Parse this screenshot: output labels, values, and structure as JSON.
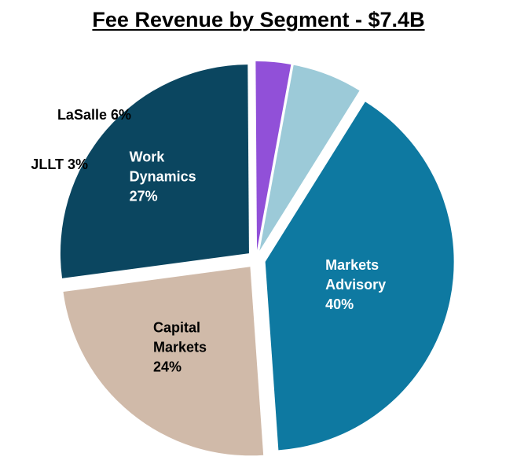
{
  "chart_data": {
    "type": "pie",
    "title": "Fee Revenue by Segment - $7.4B",
    "slices": [
      {
        "name": "Markets Advisory",
        "value": 40,
        "label_lines": [
          "Markets",
          "Advisory",
          "40%"
        ],
        "color": "#0e79a1",
        "label_color": "#ffffff",
        "label_position": "inside"
      },
      {
        "name": "Capital Markets",
        "value": 24,
        "label_lines": [
          "Capital",
          "Markets",
          "24%"
        ],
        "color": "#d0baa9",
        "label_color": "#000000",
        "label_position": "inside"
      },
      {
        "name": "Work Dynamics",
        "value": 27,
        "label_lines": [
          "Work",
          "Dynamics",
          "27%"
        ],
        "color": "#0b4660",
        "label_color": "#ffffff",
        "label_position": "inside"
      },
      {
        "name": "JLLT",
        "value": 3,
        "label_lines": [
          "JLLT 3%"
        ],
        "color": "#9150d8",
        "label_color": "#000000",
        "label_position": "outside"
      },
      {
        "name": "LaSalle",
        "value": 6,
        "label_lines": [
          "LaSalle 6%"
        ],
        "color": "#9ccad8",
        "label_color": "#000000",
        "label_position": "outside"
      }
    ],
    "legend": "none"
  }
}
